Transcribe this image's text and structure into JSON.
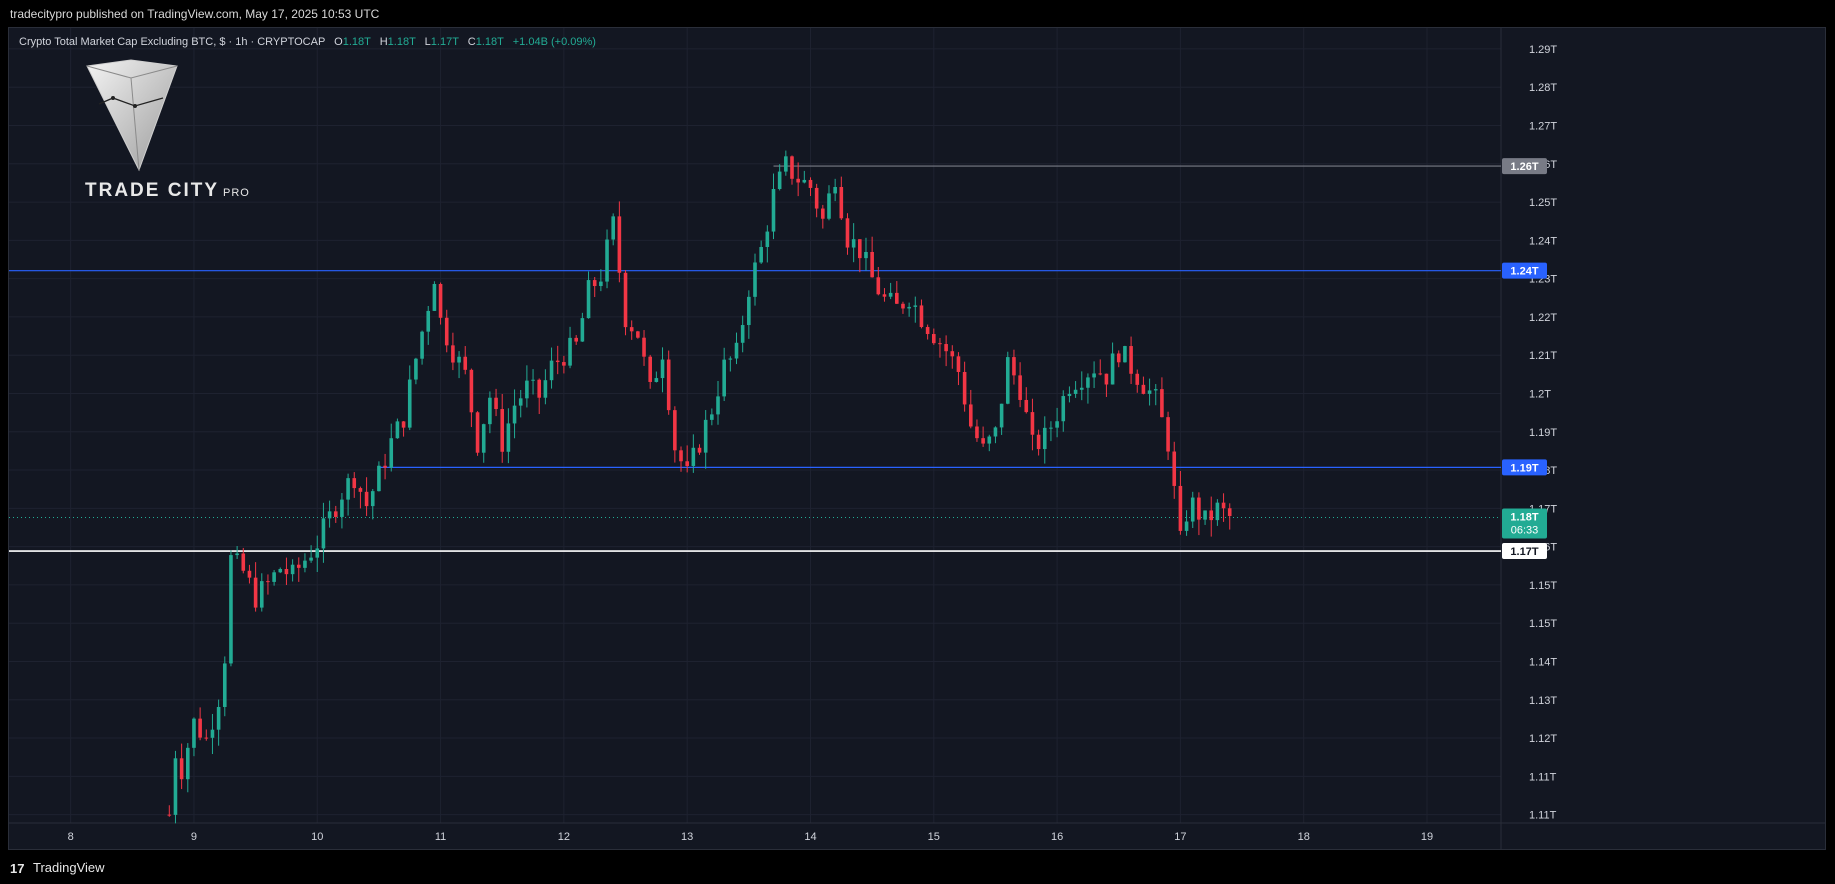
{
  "header": {
    "published": "tradecitypro published on TradingView.com, May 17, 2025 10:53 UTC"
  },
  "legend": {
    "symbol": "Crypto Total Market Cap Excluding BTC, $ · 1h · CRYPTOCAP",
    "o_label": "O",
    "o": "1.18T",
    "h_label": "H",
    "h": "1.18T",
    "l_label": "L",
    "l": "1.17T",
    "c_label": "C",
    "c": "1.18T",
    "change": "+1.04B (+0.09%)"
  },
  "logo": {
    "brand": "TRADE CITY",
    "suffix": "PRO"
  },
  "footer": {
    "brand": "TradingView",
    "mark": "17"
  },
  "colors": {
    "background": "#131722",
    "up": "#22ab94",
    "down": "#f23645",
    "grid": "#1e2230",
    "line_blue": "#2962ff",
    "line_gray": "#787b86",
    "line_white": "#ffffff"
  },
  "chart_data": {
    "type": "candlestick",
    "title": "Crypto Total Market Cap Excluding BTC, $ · 1h · CRYPTOCAP",
    "y_unit": "T (trillion USD)",
    "ylim": [
      1.105,
      1.295
    ],
    "xlim": [
      7.5,
      19.6
    ],
    "y_ticks": [
      "1.29T",
      "1.28T",
      "1.27T",
      "1.26T",
      "1.25T",
      "1.24T",
      "1.23T",
      "1.22T",
      "1.21T",
      "1.2T",
      "1.19T",
      "1.18T",
      "1.17T",
      "1.16T",
      "1.15T",
      "1.15T",
      "1.14T",
      "1.13T",
      "1.12T",
      "1.11T",
      "1.11T"
    ],
    "x_ticks": [
      "8",
      "9",
      "10",
      "11",
      "12",
      "13",
      "14",
      "15",
      "16",
      "17",
      "18",
      "19"
    ],
    "horizontal_lines": [
      {
        "value": 1.262,
        "label": "1.26T",
        "color": "#787b86",
        "start_day": 13.7
      },
      {
        "value": 1.237,
        "label": "1.24T",
        "color": "#2962ff",
        "start_day": 7.5
      },
      {
        "value": 1.19,
        "label": "1.19T",
        "color": "#2962ff",
        "start_day": 10.5
      },
      {
        "value": 1.17,
        "label": "1.17T",
        "color": "#ffffff",
        "start_day": 7.5
      }
    ],
    "last_price": {
      "value": 1.178,
      "label": "1.18T",
      "countdown": "06:33"
    },
    "series": [
      {
        "name": "close_path",
        "x": [
          8.8,
          8.85,
          8.9,
          9.0,
          9.1,
          9.2,
          9.25,
          9.3,
          9.4,
          9.5,
          9.6,
          9.7,
          9.8,
          9.9,
          10.0,
          10.1,
          10.2,
          10.3,
          10.4,
          10.5,
          10.6,
          10.7,
          10.8,
          10.9,
          10.95,
          11.0,
          11.1,
          11.2,
          11.3,
          11.4,
          11.5,
          11.6,
          11.7,
          11.8,
          11.9,
          12.0,
          12.1,
          12.2,
          12.3,
          12.4,
          12.5,
          12.6,
          12.7,
          12.8,
          12.9,
          13.0,
          13.1,
          13.2,
          13.3,
          13.4,
          13.5,
          13.6,
          13.7,
          13.8,
          13.9,
          14.0,
          14.1,
          14.2,
          14.3,
          14.4,
          14.5,
          14.6,
          14.7,
          14.8,
          14.9,
          15.0,
          15.1,
          15.2,
          15.3,
          15.4,
          15.5,
          15.6,
          15.7,
          15.8,
          15.9,
          16.0,
          16.1,
          16.2,
          16.3,
          16.4,
          16.5,
          16.6,
          16.7,
          16.8,
          16.9,
          17.0,
          17.05,
          17.1,
          17.2,
          17.3,
          17.4
        ],
        "close": [
          1.107,
          1.122,
          1.118,
          1.129,
          1.125,
          1.135,
          1.145,
          1.168,
          1.165,
          1.159,
          1.162,
          1.166,
          1.164,
          1.168,
          1.172,
          1.178,
          1.184,
          1.188,
          1.181,
          1.188,
          1.196,
          1.202,
          1.216,
          1.229,
          1.236,
          1.225,
          1.218,
          1.212,
          1.196,
          1.207,
          1.196,
          1.205,
          1.209,
          1.207,
          1.214,
          1.217,
          1.219,
          1.232,
          1.236,
          1.248,
          1.226,
          1.222,
          1.208,
          1.218,
          1.195,
          1.188,
          1.196,
          1.204,
          1.214,
          1.217,
          1.233,
          1.242,
          1.255,
          1.262,
          1.259,
          1.257,
          1.249,
          1.26,
          1.245,
          1.242,
          1.235,
          1.23,
          1.228,
          1.231,
          1.226,
          1.222,
          1.218,
          1.213,
          1.2,
          1.194,
          1.198,
          1.215,
          1.209,
          1.195,
          1.197,
          1.203,
          1.21,
          1.212,
          1.214,
          1.212,
          1.218,
          1.214,
          1.21,
          1.206,
          1.196,
          1.172,
          1.179,
          1.181,
          1.177,
          1.18,
          1.178
        ]
      }
    ]
  }
}
